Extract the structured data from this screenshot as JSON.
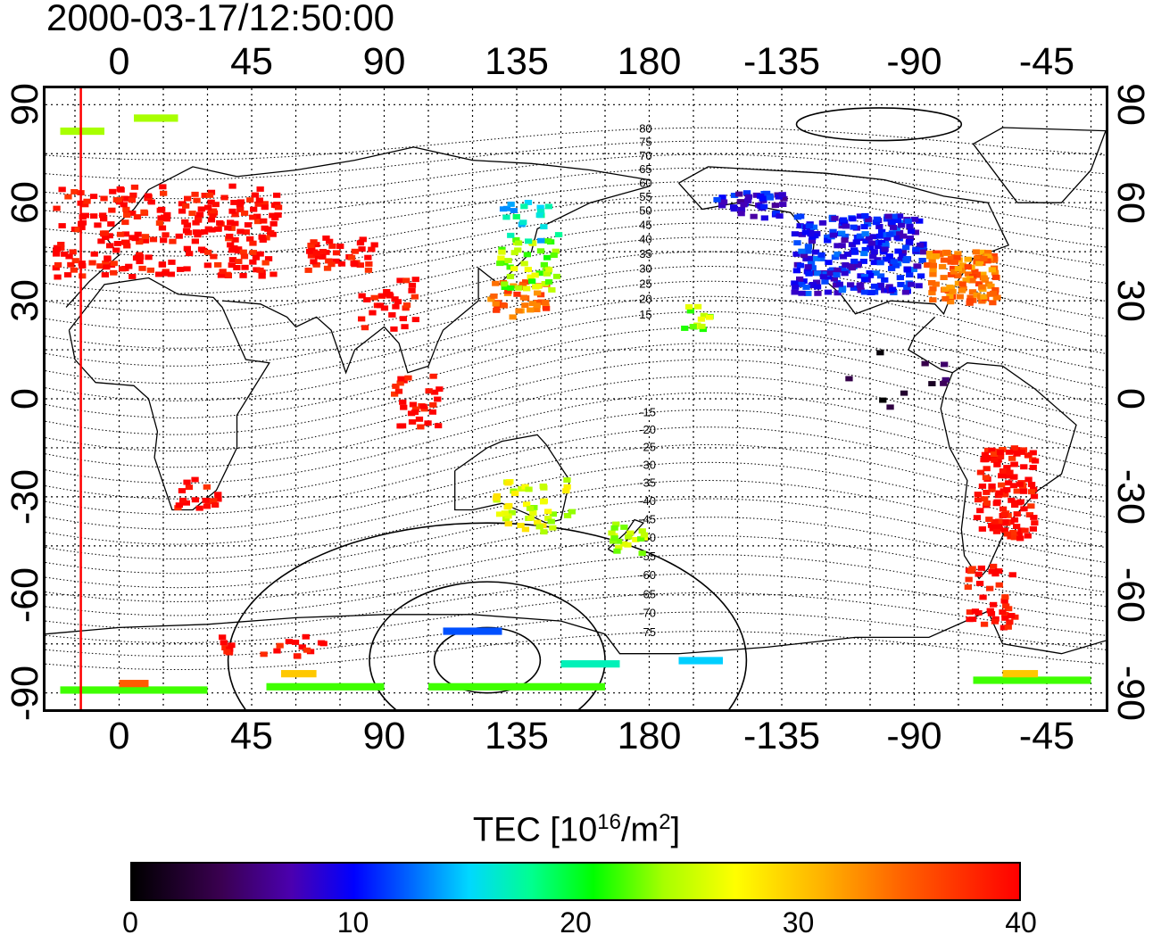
{
  "timestamp": "2000-03-17/12:50:00",
  "lon_ticks": [
    "0",
    "45",
    "90",
    "135",
    "180",
    "-135",
    "-90",
    "-45"
  ],
  "lat_ticks": [
    "90",
    "60",
    "30",
    "0",
    "-30",
    "-60",
    "-90"
  ],
  "contour_labels": [
    "80",
    "75",
    "70",
    "65",
    "60",
    "55",
    "50",
    "45",
    "40",
    "35",
    "30",
    "25",
    "20",
    "15",
    "-15",
    "-20",
    "-25",
    "-30",
    "-35",
    "-40",
    "-45",
    "-50",
    "-55",
    "-60",
    "-65",
    "-70",
    "-75"
  ],
  "colorbar": {
    "label_prefix": "TEC  [10",
    "label_exp1": "16",
    "label_mid": "/m",
    "label_exp2": "2",
    "label_suffix": "]",
    "ticks": [
      "0",
      "10",
      "20",
      "30",
      "40"
    ],
    "range": [
      0,
      40
    ]
  },
  "map": {
    "lon_range": [
      -25,
      335
    ],
    "lat_range": [
      -95,
      95
    ],
    "terminator_lon": -13,
    "tec_clusters": [
      {
        "lon": 15,
        "lat": 52,
        "tec": 40,
        "n": 260,
        "w": 38,
        "h": 14
      },
      {
        "lon": 75,
        "lat": 45,
        "tec": 40,
        "n": 40,
        "w": 12,
        "h": 5
      },
      {
        "lon": 90,
        "lat": 30,
        "tec": 40,
        "n": 30,
        "w": 10,
        "h": 8
      },
      {
        "lon": 135,
        "lat": 31,
        "tec": 35,
        "n": 40,
        "w": 10,
        "h": 6
      },
      {
        "lon": 138,
        "lat": 42,
        "tec": 24,
        "n": 45,
        "w": 10,
        "h": 8
      },
      {
        "lon": 100,
        "lat": 0,
        "tec": 40,
        "n": 30,
        "w": 8,
        "h": 8
      },
      {
        "lon": 138,
        "lat": 55,
        "tec": 16,
        "n": 20,
        "w": 10,
        "h": 6
      },
      {
        "lon": 250,
        "lat": 45,
        "tec": 10,
        "n": 260,
        "w": 22,
        "h": 12
      },
      {
        "lon": 285,
        "lat": 38,
        "tec": 34,
        "n": 120,
        "w": 12,
        "h": 8
      },
      {
        "lon": 213,
        "lat": 60,
        "tec": 9,
        "n": 40,
        "w": 12,
        "h": 4
      },
      {
        "lon": 300,
        "lat": -28,
        "tec": 40,
        "n": 120,
        "w": 10,
        "h": 14
      },
      {
        "lon": 295,
        "lat": -60,
        "tec": 40,
        "n": 40,
        "w": 8,
        "h": 10
      },
      {
        "lon": 140,
        "lat": -32,
        "tec": 26,
        "n": 45,
        "w": 14,
        "h": 8
      },
      {
        "lon": 172,
        "lat": -42,
        "tec": 24,
        "n": 20,
        "w": 6,
        "h": 5
      },
      {
        "lon": 25,
        "lat": -28,
        "tec": 40,
        "n": 18,
        "w": 8,
        "h": 5
      },
      {
        "lon": 50,
        "lat": -75,
        "tec": 40,
        "n": 20,
        "w": 20,
        "h": 3
      },
      {
        "lon": 260,
        "lat": 5,
        "tec": 3,
        "n": 10,
        "w": 20,
        "h": 10
      },
      {
        "lon": 195,
        "lat": 25,
        "tec": 24,
        "n": 14,
        "w": 5,
        "h": 4
      }
    ]
  }
}
